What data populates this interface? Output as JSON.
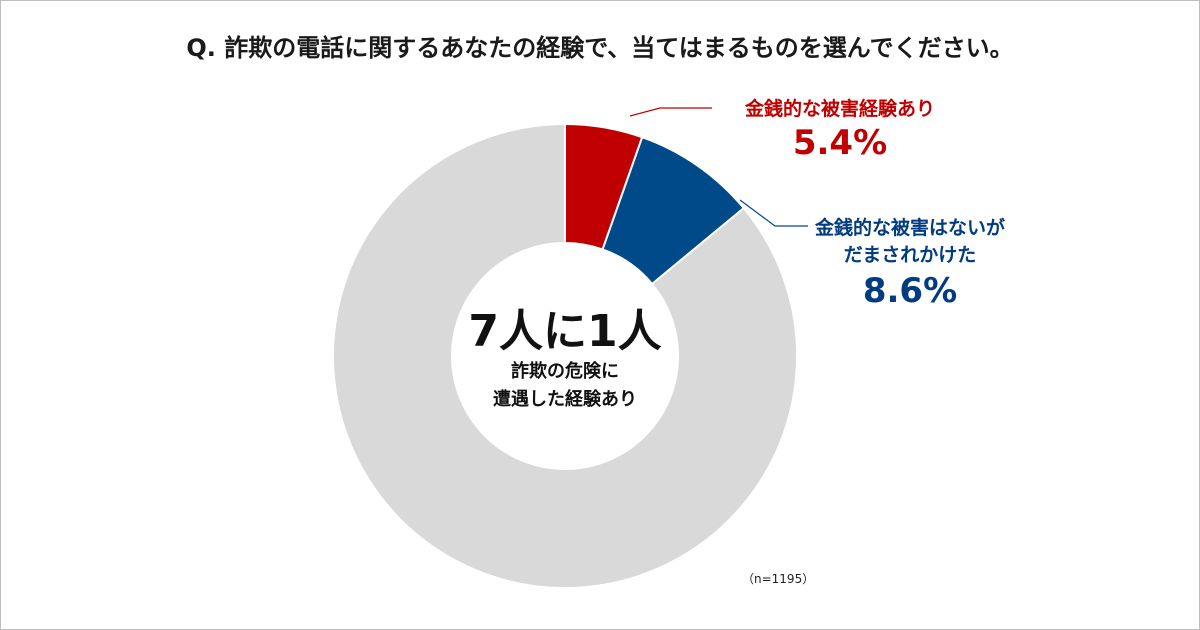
{
  "chart_data": {
    "type": "pie",
    "title": "Q. 詐欺の電話に関するあなたの経験で、当てはまるものを選んでください。",
    "donut": true,
    "slices": [
      {
        "label": "金銭的な被害経験あり",
        "value": 5.4,
        "value_label": "5.4%",
        "color": "#c00000"
      },
      {
        "label_lines": [
          "金銭的な被害はないが",
          "だまされかけた"
        ],
        "value": 8.6,
        "value_label": "8.6%",
        "color": "#004a8a"
      },
      {
        "label": "",
        "value": 86.0,
        "color": "#d9d9d9"
      }
    ],
    "center_text": {
      "headline": "7人に1人",
      "lines": [
        "詐欺の危険に",
        "遭遇した経験あり"
      ]
    },
    "note": "（n=1195）",
    "legend": "none"
  }
}
